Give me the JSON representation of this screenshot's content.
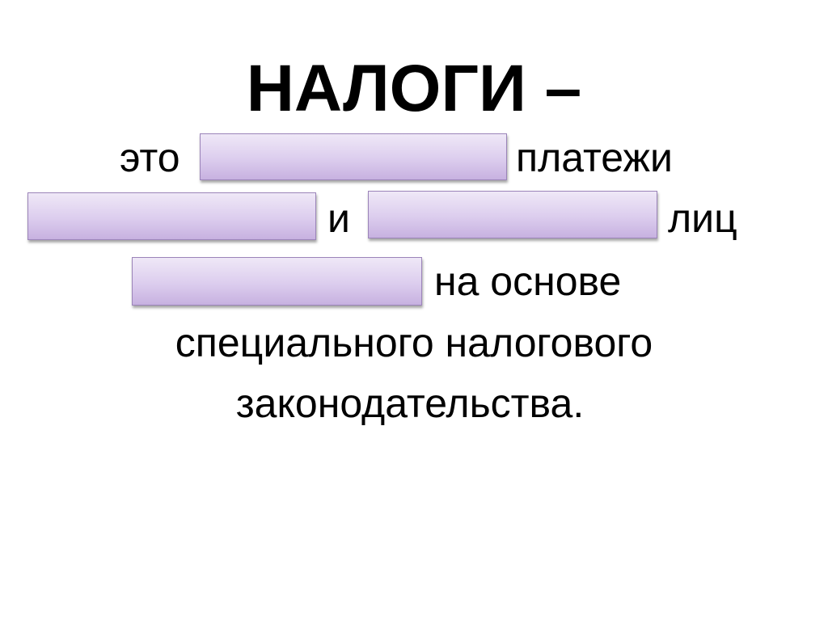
{
  "slide": {
    "title": "НАЛОГИ –",
    "line1": {
      "a": "это",
      "b": "платежи"
    },
    "line2": {
      "a": "и",
      "b": "лиц"
    },
    "line3": {
      "b": "на основе"
    },
    "line4": "специального налогового",
    "line5": "законодательства.",
    "box_color": "#dccdee",
    "box_border": "#9b84b9"
  }
}
